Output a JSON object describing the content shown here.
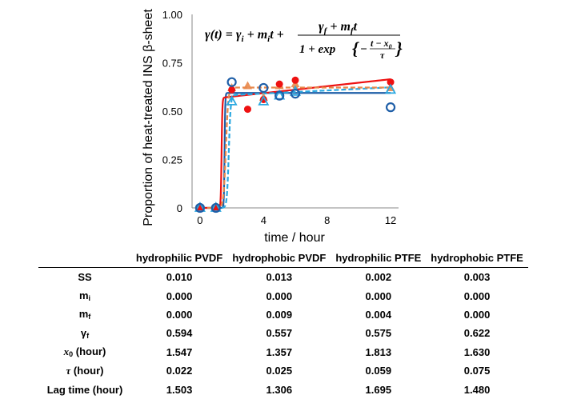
{
  "chart_data": {
    "type": "scatter",
    "xlabel": "time / hour",
    "ylabel": "Proportion of heat-treated INS β-sheet",
    "xlim": [
      -0.5,
      12.5
    ],
    "ylim": [
      0,
      1.0
    ],
    "x_ticks": [
      0,
      4,
      8,
      12
    ],
    "y_ticks": [
      {
        "value": 0,
        "label": "0"
      },
      {
        "value": 0.25,
        "label": "0.25"
      },
      {
        "value": 0.5,
        "label": "0.50"
      },
      {
        "value": 0.75,
        "label": "0.75"
      },
      {
        "value": 1.0,
        "label": "1.00"
      }
    ],
    "equation": {
      "lhs": "γ(t) = γ",
      "lhs_sub": "i",
      "mid": " + m",
      "mid_sub": "i",
      "mid2": "t +",
      "num_a": "γ",
      "num_a_sub": "f",
      "num_b": " + m",
      "num_b_sub": "f",
      "num_c": "t",
      "den_a": "1 + exp",
      "den_b": "−",
      "den_num": "t − x",
      "den_num_sub": "0",
      "den_den": "τ"
    },
    "series": [
      {
        "name": "hydrophilic PVDF",
        "color": "#1f5fa8",
        "marker": "open-circle",
        "line": "solid",
        "points": [
          [
            0,
            0
          ],
          [
            1,
            0
          ],
          [
            2,
            0.65
          ],
          [
            4,
            0.62
          ],
          [
            5,
            0.58
          ],
          [
            6,
            0.59
          ],
          [
            12,
            0.52
          ]
        ],
        "fit": {
          "gi": 0,
          "mi": 0,
          "mf": 0,
          "gf": 0.594,
          "x0": 1.547,
          "tau": 0.022
        }
      },
      {
        "name": "hydrophobic PVDF",
        "color": "#ee1111",
        "marker": "filled-circle",
        "line": "solid",
        "points": [
          [
            0,
            0
          ],
          [
            1,
            0
          ],
          [
            2,
            0.61
          ],
          [
            3,
            0.51
          ],
          [
            4,
            0.56
          ],
          [
            5,
            0.64
          ],
          [
            6,
            0.66
          ],
          [
            12,
            0.65
          ]
        ],
        "fit": {
          "gi": 0,
          "mi": 0,
          "mf": 0.009,
          "gf": 0.557,
          "x0": 1.357,
          "tau": 0.025
        }
      },
      {
        "name": "hydrophilic PTFE",
        "color": "#2aa8e0",
        "marker": "open-triangle",
        "line": "dashed",
        "points": [
          [
            0,
            0
          ],
          [
            1,
            0
          ],
          [
            2,
            0.55
          ],
          [
            4,
            0.55
          ],
          [
            5,
            0.58
          ],
          [
            6,
            0.6
          ],
          [
            12,
            0.61
          ]
        ],
        "fit": {
          "gi": 0,
          "mi": 0,
          "mf": 0.004,
          "gf": 0.575,
          "x0": 1.813,
          "tau": 0.059
        }
      },
      {
        "name": "hydrophobic PTFE",
        "color": "#e8874a",
        "marker": "filled-triangle",
        "line": "dashed",
        "points": [
          [
            0,
            0
          ],
          [
            1,
            0
          ],
          [
            2,
            0.62
          ],
          [
            3,
            0.63
          ],
          [
            4,
            0.57
          ],
          [
            5,
            0.63
          ],
          [
            6,
            0.64
          ],
          [
            12,
            0.62
          ]
        ],
        "fit": {
          "gi": 0,
          "mi": 0,
          "mf": 0,
          "gf": 0.622,
          "x0": 1.63,
          "tau": 0.075
        }
      }
    ]
  },
  "table": {
    "headers": [
      "",
      "hydrophilic PVDF",
      "hydrophobic PVDF",
      "hydrophilic PTFE",
      "hydrophobic PTFE"
    ],
    "rows": [
      {
        "label": "SS",
        "sub": "",
        "unit": "",
        "values": [
          "0.010",
          "0.013",
          "0.002",
          "0.003"
        ]
      },
      {
        "label": "m",
        "sub": "i",
        "unit": "",
        "values": [
          "0.000",
          "0.000",
          "0.000",
          "0.000"
        ]
      },
      {
        "label": "m",
        "sub": "f",
        "unit": "",
        "values": [
          "0.000",
          "0.009",
          "0.004",
          "0.000"
        ]
      },
      {
        "label": "γ",
        "sub": "f",
        "unit": "",
        "values": [
          "0.594",
          "0.557",
          "0.575",
          "0.622"
        ]
      },
      {
        "label": "x",
        "sub": "0",
        "unit": " (hour)",
        "values": [
          "1.547",
          "1.357",
          "1.813",
          "1.630"
        ]
      },
      {
        "label": "τ",
        "sub": "",
        "unit": " (hour)",
        "values": [
          "0.022",
          "0.025",
          "0.059",
          "0.075"
        ]
      },
      {
        "label": "Lag time (hour)",
        "sub": "",
        "unit": "",
        "values": [
          "1.503",
          "1.306",
          "1.695",
          "1.480"
        ]
      }
    ]
  }
}
